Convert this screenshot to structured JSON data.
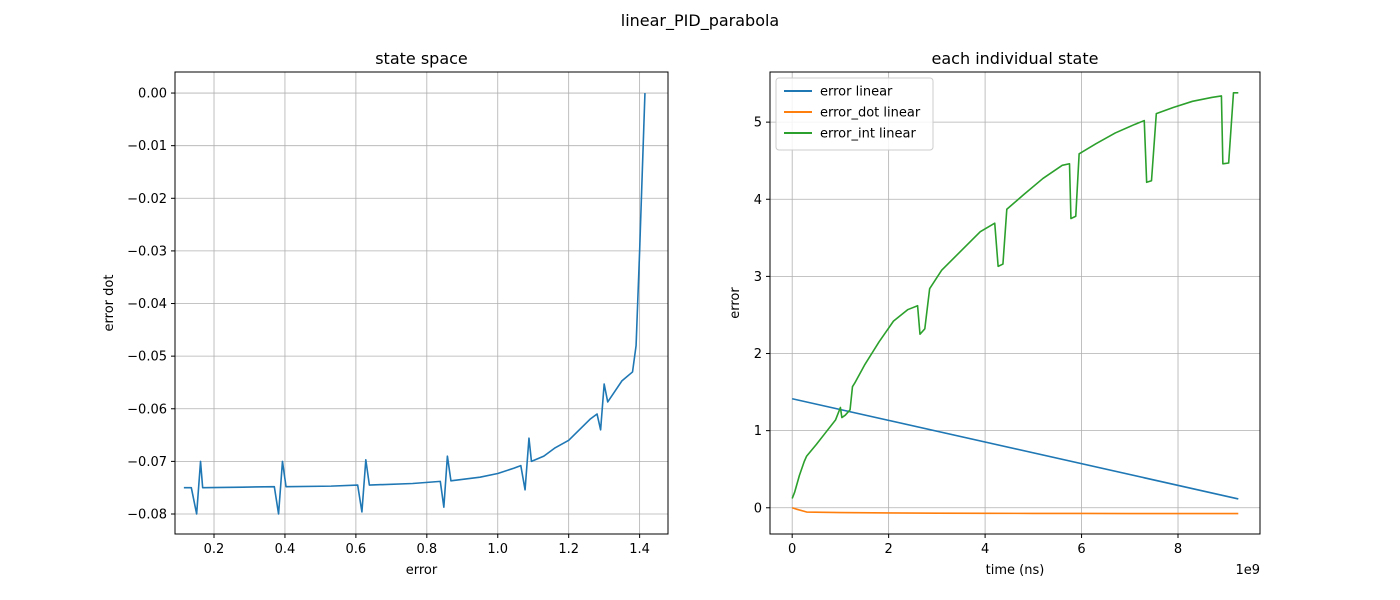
{
  "figure_title": "linear_PID_parabola",
  "colors": {
    "blue": "#1f77b4",
    "orange": "#ff7f0e",
    "green": "#2ca02c",
    "grid": "#b0b0b0"
  },
  "chart_data": [
    {
      "type": "line",
      "title": "state space",
      "xlabel": "error",
      "ylabel": "error dot",
      "xlim": [
        0.09,
        1.48
      ],
      "ylim": [
        -0.0838,
        0.004
      ],
      "xticks": [
        0.2,
        0.4,
        0.6,
        0.8,
        1.0,
        1.2,
        1.4
      ],
      "xtick_labels": [
        "0.2",
        "0.4",
        "0.6",
        "0.8",
        "1.0",
        "1.2",
        "1.4"
      ],
      "yticks": [
        0.0,
        -0.01,
        -0.02,
        -0.03,
        -0.04,
        -0.05,
        -0.06,
        -0.07,
        -0.08
      ],
      "ytick_labels": [
        "0.00",
        "−0.01",
        "−0.02",
        "−0.03",
        "−0.04",
        "−0.05",
        "−0.06",
        "−0.07",
        "−0.08"
      ],
      "grid": true,
      "series": [
        {
          "color": "#1f77b4",
          "x": [
            0.115,
            0.136,
            0.151,
            0.162,
            0.168,
            0.28,
            0.37,
            0.382,
            0.393,
            0.403,
            0.53,
            0.605,
            0.617,
            0.628,
            0.638,
            0.76,
            0.838,
            0.848,
            0.858,
            0.868,
            0.95,
            1.0,
            1.045,
            1.065,
            1.077,
            1.088,
            1.095,
            1.13,
            1.16,
            1.2,
            1.23,
            1.26,
            1.28,
            1.29,
            1.3,
            1.31,
            1.33,
            1.35,
            1.38,
            1.39,
            1.4,
            1.41,
            1.415
          ],
          "y": [
            -0.075,
            -0.075,
            -0.08,
            -0.07,
            -0.075,
            -0.0749,
            -0.0748,
            -0.08,
            -0.07,
            -0.0748,
            -0.0747,
            -0.0745,
            -0.0796,
            -0.0697,
            -0.0745,
            -0.0742,
            -0.0738,
            -0.0787,
            -0.069,
            -0.0737,
            -0.073,
            -0.0723,
            -0.0713,
            -0.0708,
            -0.0754,
            -0.0656,
            -0.07,
            -0.069,
            -0.0675,
            -0.066,
            -0.064,
            -0.062,
            -0.061,
            -0.064,
            -0.0553,
            -0.0587,
            -0.0567,
            -0.0547,
            -0.053,
            -0.048,
            -0.03,
            -0.01,
            0.0
          ]
        }
      ]
    },
    {
      "type": "line",
      "title": "each individual state",
      "xlabel": "time (ns)",
      "ylabel": "error",
      "x_offset_label": "1e9",
      "xlim": [
        -0.46,
        9.7
      ],
      "ylim": [
        -0.34,
        5.65
      ],
      "xticks": [
        0,
        2,
        4,
        6,
        8
      ],
      "xtick_labels": [
        "0",
        "2",
        "4",
        "6",
        "8"
      ],
      "yticks": [
        0,
        1,
        2,
        3,
        4,
        5
      ],
      "ytick_labels": [
        "0",
        "1",
        "2",
        "3",
        "4",
        "5"
      ],
      "grid": true,
      "legend": "top-left",
      "series": [
        {
          "name": "error linear",
          "color": "#1f77b4",
          "x": [
            0,
            9.25
          ],
          "y": [
            1.414,
            0.115
          ]
        },
        {
          "name": "error_dot linear",
          "color": "#ff7f0e",
          "x": [
            0,
            0.1,
            0.3,
            1.0,
            2.0,
            3.0,
            4.0,
            5.0,
            6.0,
            7.0,
            8.0,
            9.0,
            9.25
          ],
          "y": [
            0.0,
            -0.02,
            -0.055,
            -0.062,
            -0.067,
            -0.07,
            -0.072,
            -0.073,
            -0.074,
            -0.075,
            -0.075,
            -0.075,
            -0.075
          ]
        },
        {
          "name": "error_int linear",
          "color": "#2ca02c",
          "x": [
            0,
            0.05,
            0.15,
            0.25,
            0.3,
            0.5,
            0.7,
            0.9,
            1.0,
            1.03,
            1.1,
            1.2,
            1.25,
            1.3,
            1.5,
            1.8,
            2.1,
            2.4,
            2.6,
            2.65,
            2.75,
            2.85,
            3.1,
            3.5,
            3.9,
            4.2,
            4.27,
            4.37,
            4.45,
            4.8,
            5.2,
            5.6,
            5.75,
            5.78,
            5.88,
            5.95,
            6.3,
            6.7,
            7.1,
            7.3,
            7.35,
            7.45,
            7.55,
            7.9,
            8.3,
            8.7,
            8.9,
            8.93,
            9.05,
            9.15,
            9.25
          ],
          "y": [
            0.12,
            0.2,
            0.42,
            0.6,
            0.67,
            0.82,
            0.98,
            1.14,
            1.3,
            1.17,
            1.2,
            1.27,
            1.57,
            1.62,
            1.85,
            2.15,
            2.42,
            2.57,
            2.62,
            2.25,
            2.32,
            2.84,
            3.08,
            3.33,
            3.58,
            3.69,
            3.13,
            3.16,
            3.87,
            4.06,
            4.27,
            4.44,
            4.46,
            3.75,
            3.78,
            4.59,
            4.72,
            4.86,
            4.97,
            5.02,
            4.22,
            4.24,
            5.11,
            5.19,
            5.27,
            5.32,
            5.34,
            4.46,
            4.47,
            5.38,
            5.38
          ]
        }
      ]
    }
  ]
}
